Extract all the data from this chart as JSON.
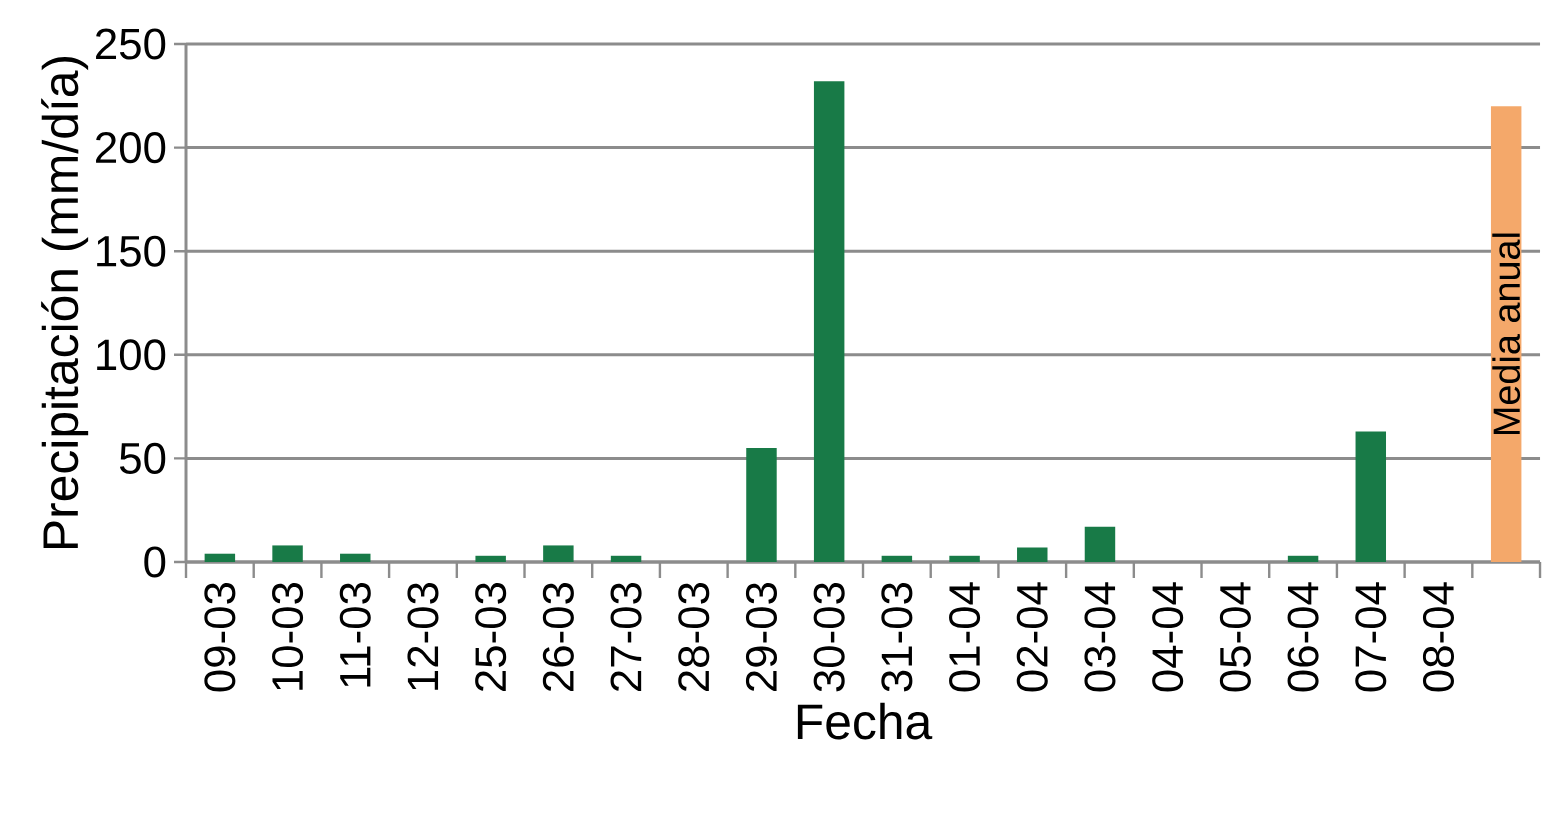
{
  "chart_data": {
    "type": "bar",
    "xlabel": "Fecha",
    "ylabel": "Precipitación (mm/día)",
    "categories": [
      "09-03",
      "10-03",
      "11-03",
      "12-03",
      "25-03",
      "26-03",
      "27-03",
      "28-03",
      "29-03",
      "30-03",
      "31-03",
      "01-04",
      "02-04",
      "03-04",
      "04-04",
      "05-04",
      "06-04",
      "07-04",
      "08-04",
      null
    ],
    "values": [
      4,
      8,
      4,
      0,
      3,
      8,
      3,
      0,
      55,
      232,
      3,
      3,
      7,
      17,
      0,
      0,
      3,
      63,
      0,
      220
    ],
    "colors": [
      "#187a47",
      "#187a47",
      "#187a47",
      "#187a47",
      "#187a47",
      "#187a47",
      "#187a47",
      "#187a47",
      "#187a47",
      "#187a47",
      "#187a47",
      "#187a47",
      "#187a47",
      "#187a47",
      "#187a47",
      "#187a47",
      "#187a47",
      "#187a47",
      "#187a47",
      "#f4a86a"
    ],
    "annotations": [
      "Media anual"
    ],
    "ylim": [
      0,
      250
    ],
    "yticks": [
      0,
      50,
      100,
      150,
      200,
      250
    ],
    "grid": "y"
  }
}
